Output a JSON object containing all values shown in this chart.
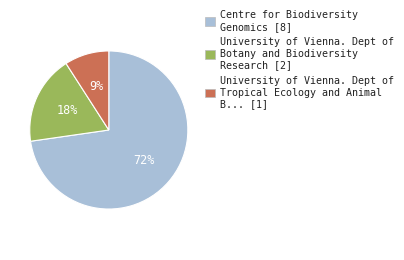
{
  "slices": [
    72,
    18,
    9
  ],
  "labels": [
    "Centre for Biodiversity\nGenomics [8]",
    "University of Vienna. Dept of\nBotany and Biodiversity\nResearch [2]",
    "University of Vienna. Dept of\nTropical Ecology and Animal\nB... [1]"
  ],
  "colors": [
    "#a8bfd8",
    "#9ab85a",
    "#cc7055"
  ],
  "pct_labels": [
    "72%",
    "18%",
    "9%"
  ],
  "pct_colors": [
    "white",
    "white",
    "white"
  ],
  "startangle": 90,
  "legend_fontsize": 7.2,
  "pct_fontsize": 8.5,
  "background_color": "#ffffff"
}
